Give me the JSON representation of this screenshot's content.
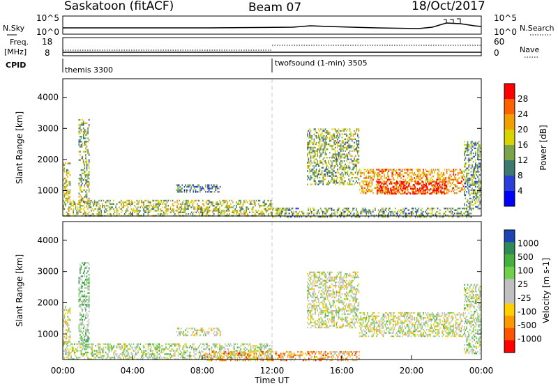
{
  "header": {
    "title": "Saskatoon (fitACF)",
    "beam": "Beam 07",
    "date": "18/Oct/2017"
  },
  "noise_panel": {
    "left_label": "N.Sky",
    "right_label": "N.Search",
    "left_ticks": [
      "10^5",
      "10^0"
    ],
    "right_ticks": [
      "10^5",
      "10^0"
    ]
  },
  "freq_panel": {
    "left_label_1": "Freq.",
    "left_label_2": "[MHz]",
    "right_label": "Nave",
    "left_ticks": [
      "18",
      "8"
    ],
    "right_ticks": [
      "60",
      "0"
    ]
  },
  "cpid_panel": {
    "label": "CPID",
    "modes": [
      {
        "name": "themis 3300",
        "start_hour": 0
      },
      {
        "name": "twofsound (1-min) 3505",
        "start_hour": 12
      }
    ]
  },
  "colors": {
    "power_scale": [
      "#0000ff",
      "#2a3fd8",
      "#3d7a6e",
      "#7ba34a",
      "#d9d400",
      "#f0a000",
      "#ff6000",
      "#ff0000"
    ],
    "velocity_scale": [
      "#1c44b4",
      "#2e8b57",
      "#45b040",
      "#6fd04a",
      "#c0c0c0",
      "#c0c0c0",
      "#ffd000",
      "#ff9900",
      "#ff5500",
      "#ff0000"
    ]
  },
  "chart_data": [
    {
      "type": "heatmap",
      "name": "power",
      "ylabel": "Slant Range [km]",
      "xlabel": "",
      "ylim": [
        180,
        4600
      ],
      "xlim": [
        0,
        24
      ],
      "yticks": [
        1000,
        2000,
        3000,
        4000
      ],
      "colorbar": {
        "label": "Power [dB]",
        "ticks": [
          4,
          8,
          12,
          16,
          20,
          24,
          28
        ]
      },
      "regions": [
        {
          "t0": 0.0,
          "t1": 0.4,
          "r0": 700,
          "r1": 1900,
          "level": 0.55
        },
        {
          "t0": 0.9,
          "t1": 1.5,
          "r0": 600,
          "r1": 3300,
          "level": 0.45
        },
        {
          "t0": 0.0,
          "t1": 12.0,
          "r0": 180,
          "r1": 700,
          "level": 0.5
        },
        {
          "t0": 6.5,
          "t1": 9.0,
          "r0": 950,
          "r1": 1200,
          "level": 0.3
        },
        {
          "t0": 12.0,
          "t1": 23.5,
          "r0": 180,
          "r1": 450,
          "level": 0.4
        },
        {
          "t0": 14.0,
          "t1": 17.0,
          "r0": 1200,
          "r1": 3000,
          "level": 0.45
        },
        {
          "t0": 17.0,
          "t1": 23.0,
          "r0": 900,
          "r1": 1700,
          "level": 0.7
        },
        {
          "t0": 18.0,
          "t1": 22.0,
          "r0": 900,
          "r1": 1300,
          "level": 0.95
        },
        {
          "t0": 23.0,
          "t1": 24.0,
          "r0": 400,
          "r1": 2600,
          "level": 0.4
        }
      ]
    },
    {
      "type": "heatmap",
      "name": "velocity",
      "ylabel": "Slant Range [km]",
      "xlabel": "Time UT",
      "ylim": [
        180,
        4600
      ],
      "xlim": [
        0,
        24
      ],
      "yticks": [
        1000,
        2000,
        3000,
        4000
      ],
      "xticks": [
        "00:00",
        "04:00",
        "08:00",
        "12:00",
        "16:00",
        "20:00",
        "00:00"
      ],
      "colorbar": {
        "label": "Velocity [m s-1]",
        "ticks": [
          "1000",
          "500",
          "100",
          "25",
          "-25",
          "-100",
          "-500",
          "-1000"
        ]
      },
      "regions": [
        {
          "t0": 0.0,
          "t1": 0.4,
          "r0": 700,
          "r1": 1900,
          "level": 0.5
        },
        {
          "t0": 0.9,
          "t1": 1.5,
          "r0": 600,
          "r1": 3300,
          "level": 0.35
        },
        {
          "t0": 0.0,
          "t1": 12.0,
          "r0": 180,
          "r1": 700,
          "level": 0.45
        },
        {
          "t0": 6.5,
          "t1": 9.0,
          "r0": 950,
          "r1": 1200,
          "level": 0.5
        },
        {
          "t0": 8.0,
          "t1": 17.0,
          "r0": 180,
          "r1": 450,
          "level": 0.7
        },
        {
          "t0": 14.0,
          "t1": 17.0,
          "r0": 1200,
          "r1": 3000,
          "level": 0.5
        },
        {
          "t0": 17.0,
          "t1": 23.0,
          "r0": 900,
          "r1": 1700,
          "level": 0.5
        },
        {
          "t0": 23.0,
          "t1": 24.0,
          "r0": 400,
          "r1": 2600,
          "level": 0.45
        }
      ]
    }
  ]
}
